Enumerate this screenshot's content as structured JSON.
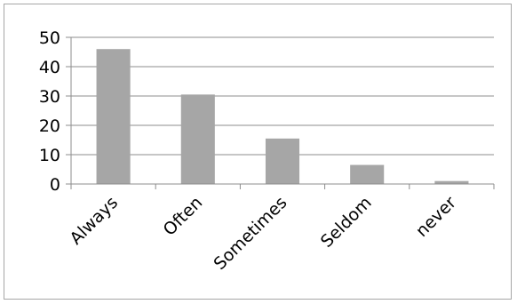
{
  "chart_data": {
    "type": "bar",
    "categories": [
      "Always",
      "Often",
      "Sometimes",
      "Seldom",
      "never"
    ],
    "values": [
      46,
      30.5,
      15.5,
      6.5,
      1
    ],
    "ylim": [
      0,
      50
    ],
    "yticks": [
      "0",
      "10",
      "20",
      "30",
      "40",
      "50"
    ],
    "grid": true,
    "legend": "none",
    "bar_color": "#a6a6a6",
    "grid_color": "#8c8c8c",
    "axis_color": "#8c8c8c"
  }
}
